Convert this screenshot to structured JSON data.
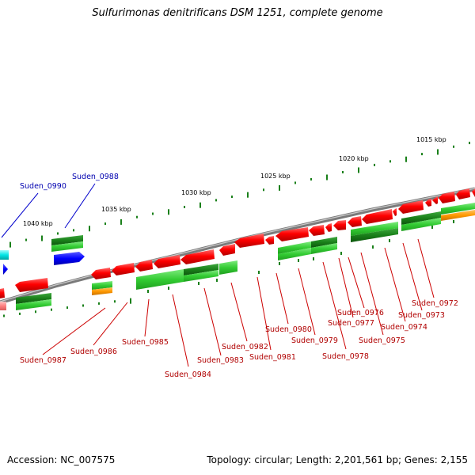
{
  "title": "Sulfurimonas denitrificans DSM 1251, complete genome",
  "footer": {
    "accession": "Accession: NC_007575",
    "summary": "Topology: circular; Length: 2,201,561 bp; Genes: 2,155"
  },
  "ruler_labels": [
    "1015 kbp",
    "1020 kbp",
    "1025 kbp",
    "1030 kbp",
    "1035 kbp",
    "1040 kbp"
  ],
  "genes_top": [
    "Suden_0990",
    "Suden_0988"
  ],
  "genes_bottom": [
    "Suden_0987",
    "Suden_0986",
    "Suden_0985",
    "Suden_0984",
    "Suden_0983",
    "Suden_0982",
    "Suden_0981",
    "Suden_0980",
    "Suden_0979",
    "Suden_0978",
    "Suden_0977",
    "Suden_0976",
    "Suden_0975",
    "Suden_0974",
    "Suden_0973",
    "Suden_0972"
  ],
  "colors": {
    "backbone": "#8c8c8c",
    "cds": "#ff0000",
    "gene_light": "#33cc33",
    "gene_dark": "#1a801a",
    "blue": "#0000ff",
    "cyan": "#00e5e5",
    "orange": "#ff9900",
    "pink": "#ff8080",
    "label_red": "#cc0000",
    "label_blue": "#0000cc"
  }
}
